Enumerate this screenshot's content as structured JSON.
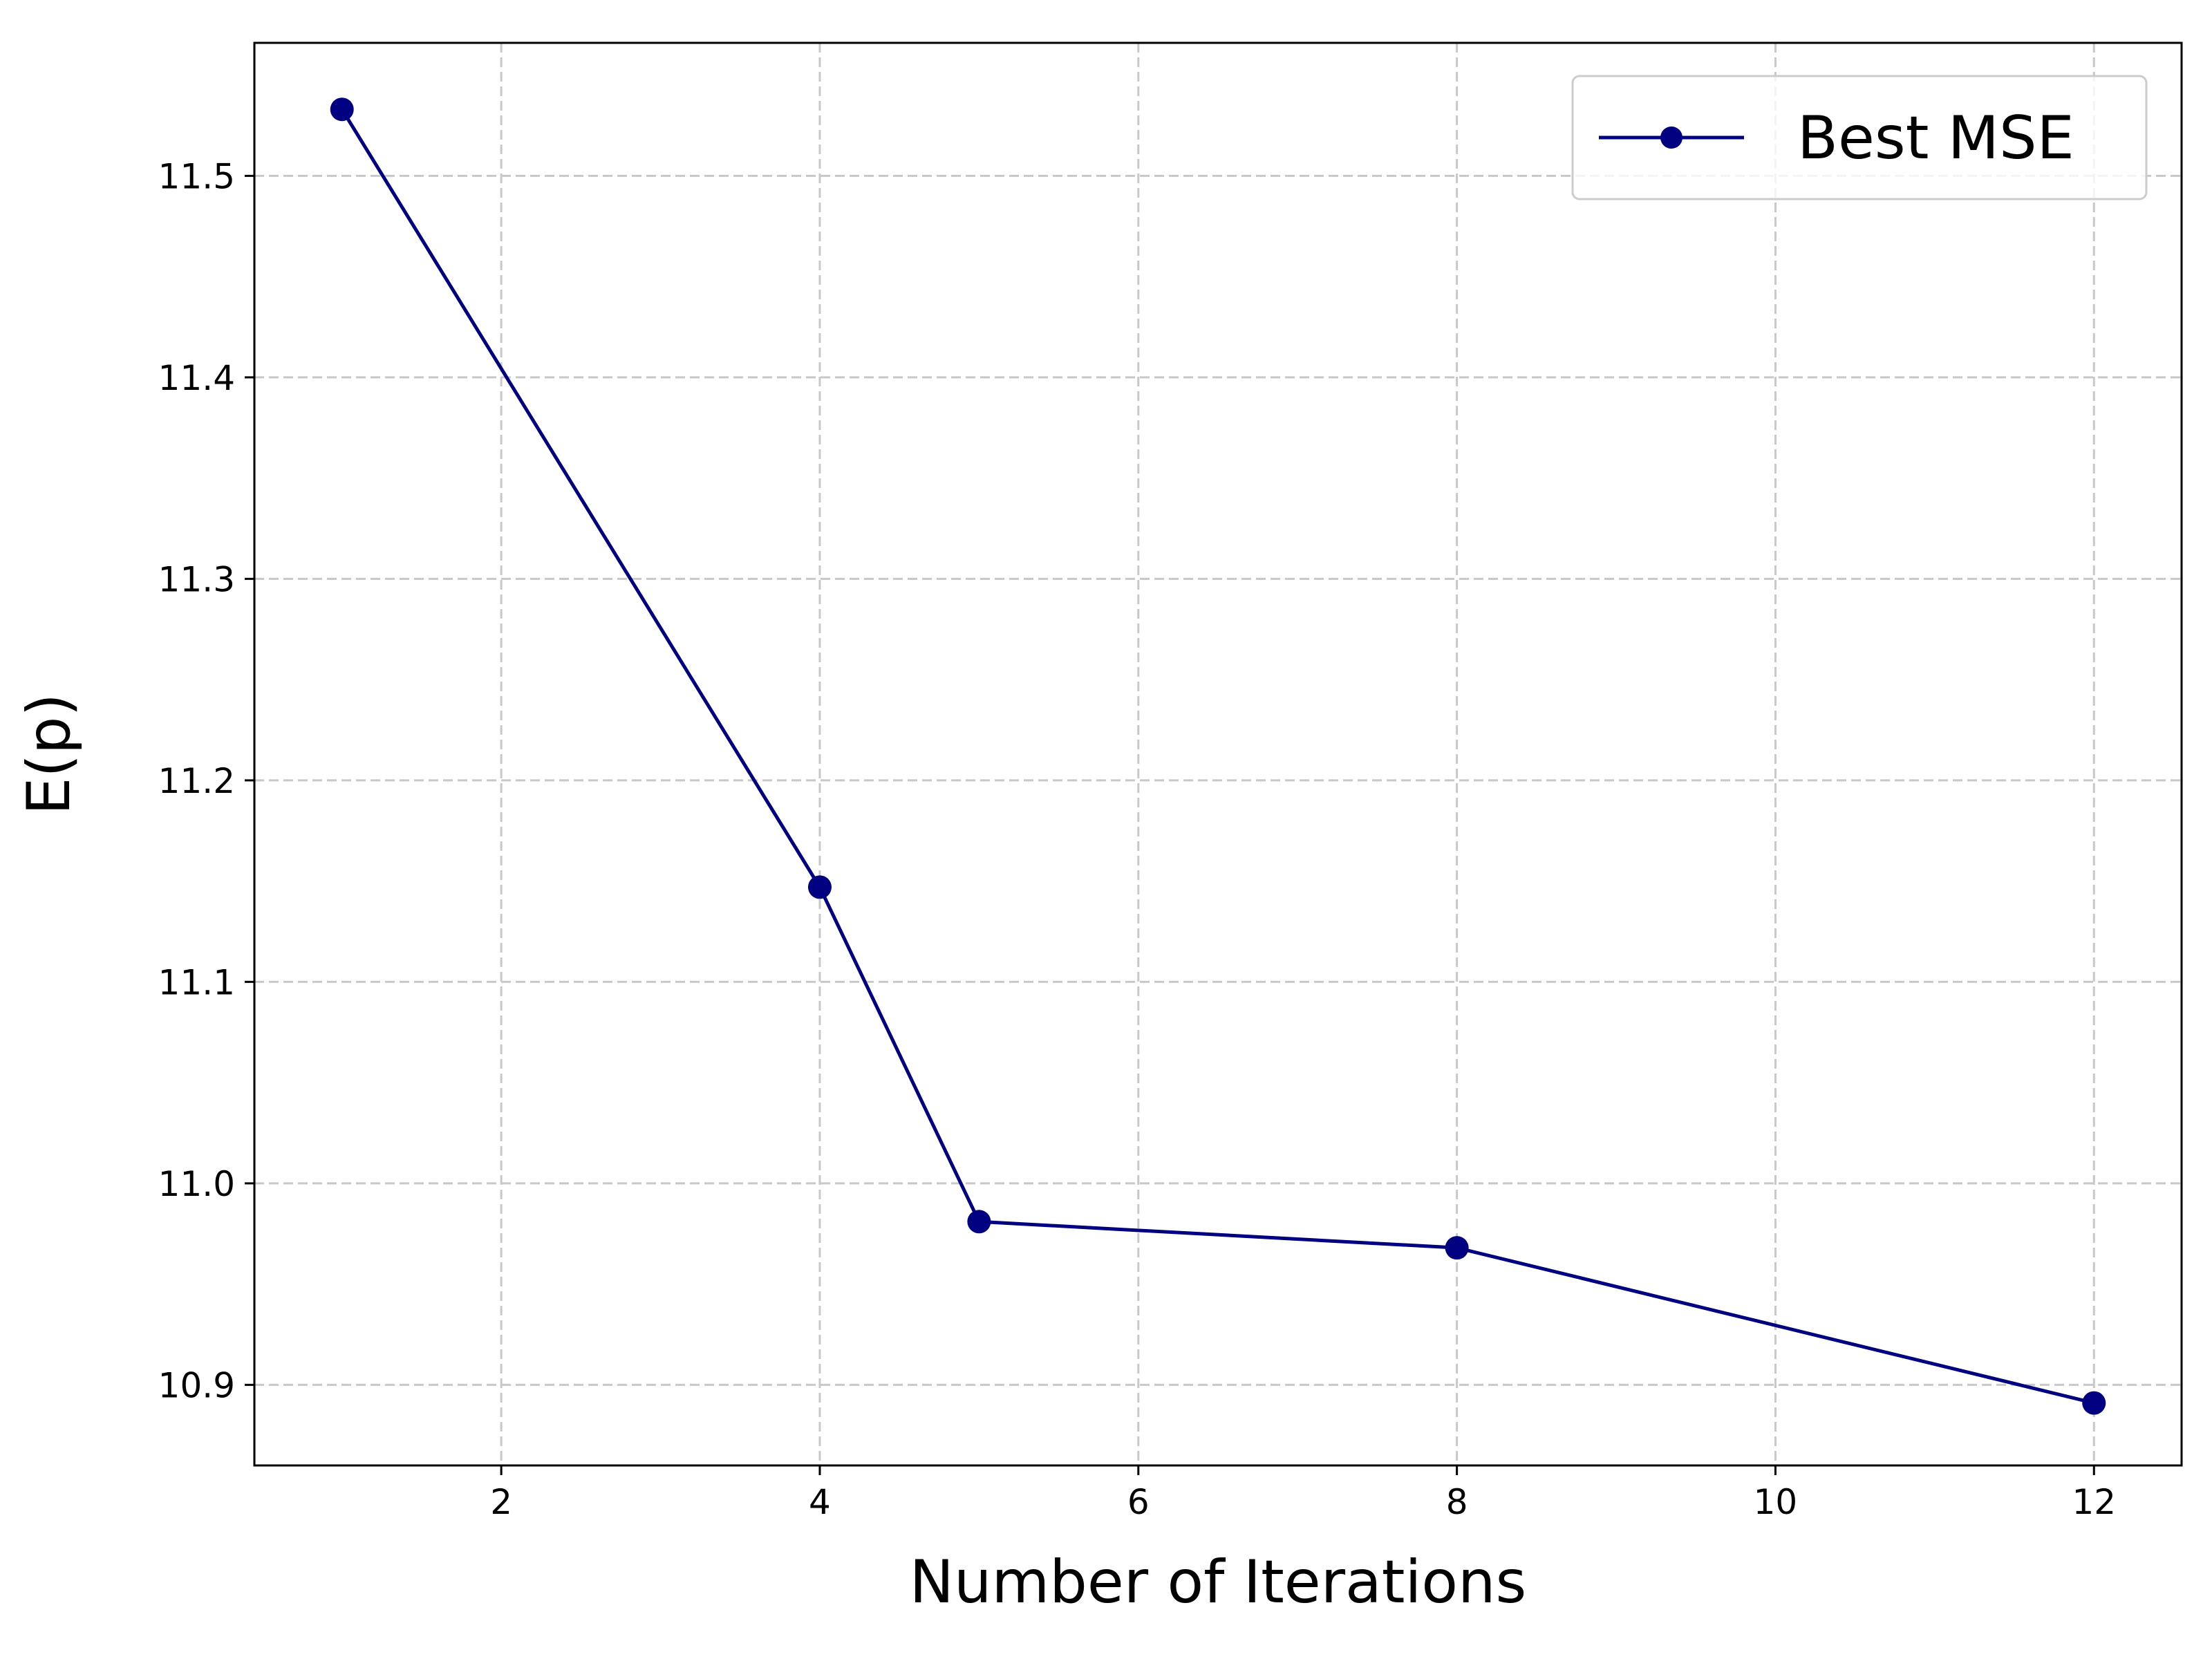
{
  "chart_data": {
    "type": "line",
    "xlabel": "Number of Iterations",
    "ylabel": "E(p)",
    "xlim": [
      0.45,
      12.55
    ],
    "ylim": [
      10.86,
      11.566
    ],
    "xticks": [
      2,
      4,
      6,
      8,
      10,
      12
    ],
    "xtick_labels": [
      "2",
      "4",
      "6",
      "8",
      "10",
      "12"
    ],
    "yticks": [
      10.9,
      11.0,
      11.1,
      11.2,
      11.3,
      11.4,
      11.5
    ],
    "ytick_labels": [
      "10.9",
      "11.0",
      "11.1",
      "11.2",
      "11.3",
      "11.4",
      "11.5"
    ],
    "grid": true,
    "legend_position": "top-right",
    "series": [
      {
        "name": "Best MSE",
        "color": "#000080",
        "marker": "circle",
        "x": [
          1,
          4,
          5,
          8,
          12
        ],
        "y": [
          11.533,
          11.147,
          10.981,
          10.968,
          10.891
        ]
      }
    ]
  }
}
